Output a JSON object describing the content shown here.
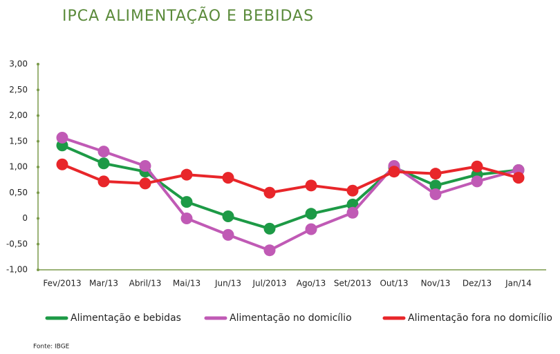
{
  "chart_data": {
    "type": "line",
    "title": "IPCA ALIMENTAÇÃO E BEBIDAS",
    "source": "Fonte: IBGE",
    "categories": [
      "Fev/2013",
      "Mar/13",
      "Abril/13",
      "Mai/13",
      "Jun/13",
      "Jul/2013",
      "Ago/13",
      "Set/2013",
      "Out/13",
      "Nov/13",
      "Dez/13",
      "Jan/14"
    ],
    "series": [
      {
        "name": "Alimentação e bebidas",
        "color": "#1d9a46",
        "values": [
          1.42,
          1.07,
          0.91,
          0.32,
          0.04,
          -0.2,
          0.09,
          0.27,
          0.99,
          0.64,
          0.85,
          0.94
        ]
      },
      {
        "name": "Alimentação no domicílio",
        "color": "#c05ab5",
        "values": [
          1.57,
          1.3,
          1.02,
          0.0,
          -0.32,
          -0.62,
          -0.21,
          0.11,
          1.02,
          0.47,
          0.72,
          0.94
        ]
      },
      {
        "name": "Alimentação fora no domicílio",
        "color": "#e8262a",
        "values": [
          1.05,
          0.72,
          0.68,
          0.85,
          0.79,
          0.5,
          0.64,
          0.54,
          0.91,
          0.87,
          1.01,
          0.79
        ]
      }
    ],
    "ylim": [
      -1,
      3
    ],
    "yticks": [
      {
        "value": -1,
        "label": "-1,00"
      },
      {
        "value": -0.5,
        "label": "-0,50"
      },
      0,
      {
        "value": 0.5,
        "label": "0,50"
      },
      {
        "value": 1,
        "label": "1,00"
      },
      {
        "value": 1.5,
        "label": "1,50"
      },
      {
        "value": 2,
        "label": "2,00"
      },
      {
        "value": 2.5,
        "label": "2,50"
      },
      {
        "value": 3,
        "label": "3,00"
      }
    ],
    "grid": false
  }
}
